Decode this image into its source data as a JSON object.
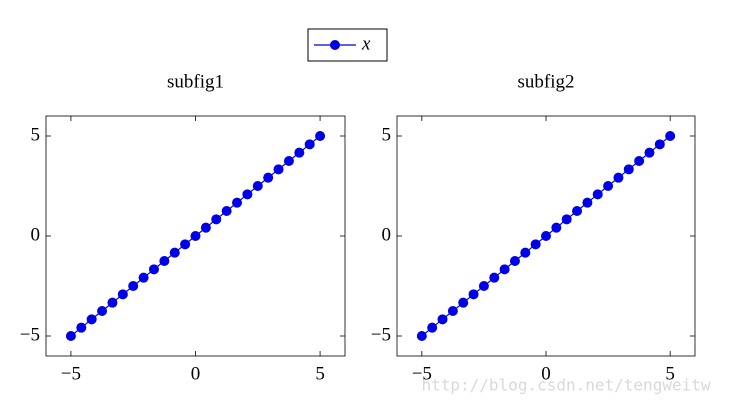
{
  "chart_data": [
    {
      "type": "line",
      "title": "subfig1",
      "x": [
        -5,
        -4.583,
        -4.167,
        -3.75,
        -3.333,
        -2.917,
        -2.5,
        -2.083,
        -1.667,
        -1.25,
        -0.833,
        -0.417,
        0,
        0.417,
        0.833,
        1.25,
        1.667,
        2.083,
        2.5,
        2.917,
        3.333,
        3.75,
        4.167,
        4.583,
        5
      ],
      "series": [
        {
          "name": "x",
          "color": "#0000e6",
          "values": [
            -5,
            -4.583,
            -4.167,
            -3.75,
            -3.333,
            -2.917,
            -2.5,
            -2.083,
            -1.667,
            -1.25,
            -0.833,
            -0.417,
            0,
            0.417,
            0.833,
            1.25,
            1.667,
            2.083,
            2.5,
            2.917,
            3.333,
            3.75,
            4.167,
            4.583,
            5
          ]
        }
      ],
      "xlim": [
        -6,
        6
      ],
      "ylim": [
        -6,
        6
      ],
      "xticks": [
        {
          "value": -5,
          "label": "−5"
        },
        0,
        5
      ],
      "yticks": [
        {
          "value": -5,
          "label": "−5"
        },
        0,
        5
      ]
    },
    {
      "type": "line",
      "title": "subfig2",
      "x": [
        -5,
        -4.583,
        -4.167,
        -3.75,
        -3.333,
        -2.917,
        -2.5,
        -2.083,
        -1.667,
        -1.25,
        -0.833,
        -0.417,
        0,
        0.417,
        0.833,
        1.25,
        1.667,
        2.083,
        2.5,
        2.917,
        3.333,
        3.75,
        4.167,
        4.583,
        5
      ],
      "series": [
        {
          "name": "x",
          "color": "#0000e6",
          "values": [
            -5,
            -4.583,
            -4.167,
            -3.75,
            -3.333,
            -2.917,
            -2.5,
            -2.083,
            -1.667,
            -1.25,
            -0.833,
            -0.417,
            0,
            0.417,
            0.833,
            1.25,
            1.667,
            2.083,
            2.5,
            2.917,
            3.333,
            3.75,
            4.167,
            4.583,
            5
          ]
        }
      ],
      "xlim": [
        -6,
        6
      ],
      "ylim": [
        -6,
        6
      ],
      "xticks": [
        {
          "value": -5,
          "label": "−5"
        },
        0,
        5
      ],
      "yticks": [
        {
          "value": -5,
          "label": "−5"
        },
        0,
        5
      ]
    }
  ],
  "watermark": "http://blog.csdn.net/tengweitw"
}
